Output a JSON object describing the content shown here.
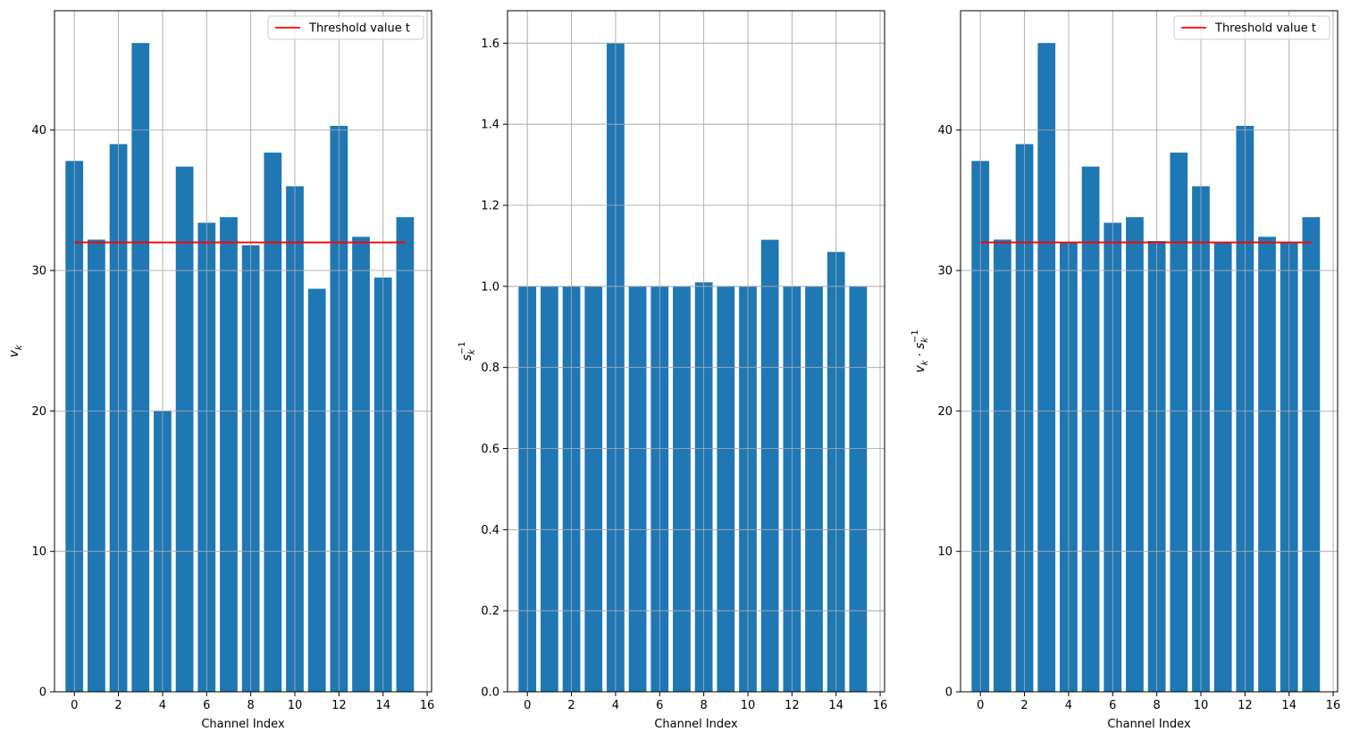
{
  "chart_data": [
    {
      "type": "bar",
      "xlabel": "Channel Index",
      "ylabel": "v_k",
      "ylabel_parts": {
        "main": "v",
        "sub": "k"
      },
      "categories": [
        0,
        1,
        2,
        3,
        4,
        5,
        6,
        7,
        8,
        9,
        10,
        11,
        12,
        13,
        14,
        15
      ],
      "values": [
        37.8,
        32.2,
        39.0,
        46.2,
        20.0,
        37.4,
        33.4,
        33.8,
        31.8,
        38.4,
        36.0,
        28.7,
        40.3,
        32.4,
        29.5,
        33.8
      ],
      "xticks": [
        0,
        2,
        4,
        6,
        8,
        10,
        12,
        14,
        16
      ],
      "xlim": [
        -0.9,
        16.2
      ],
      "yticks": [
        0,
        10,
        20,
        30,
        40
      ],
      "ylim": [
        0,
        48.5
      ],
      "bar_color": "#1f77b4",
      "threshold": {
        "value": 32.0,
        "x_start": 0,
        "x_end": 15,
        "color": "#ff0000"
      },
      "legend": {
        "label": "Threshold value t",
        "position": "upper right"
      },
      "grid": true
    },
    {
      "type": "bar",
      "xlabel": "Channel Index",
      "ylabel": "s_k^-1",
      "ylabel_parts": {
        "main": "s",
        "sub": "k",
        "sup": "−1"
      },
      "categories": [
        0,
        1,
        2,
        3,
        4,
        5,
        6,
        7,
        8,
        9,
        10,
        11,
        12,
        13,
        14,
        15
      ],
      "values": [
        1.0,
        1.0,
        1.0,
        1.0,
        1.6,
        1.0,
        1.0,
        1.0,
        1.01,
        1.0,
        1.0,
        1.115,
        1.0,
        1.0,
        1.085,
        1.0
      ],
      "xticks": [
        0,
        2,
        4,
        6,
        8,
        10,
        12,
        14,
        16
      ],
      "xlim": [
        -0.9,
        16.2
      ],
      "yticks": [
        "0.0",
        "0.2",
        "0.4",
        "0.6",
        "0.8",
        "1.0",
        "1.2",
        "1.4",
        "1.6"
      ],
      "ylim": [
        0,
        1.68
      ],
      "bar_color": "#1f77b4",
      "grid": true
    },
    {
      "type": "bar",
      "xlabel": "Channel Index",
      "ylabel": "v_k · s_k^-1",
      "ylabel_parts": {
        "main1": "v",
        "sub1": "k",
        "dot": " · ",
        "main2": "s",
        "sub2": "k",
        "sup2": "−1"
      },
      "categories": [
        0,
        1,
        2,
        3,
        4,
        5,
        6,
        7,
        8,
        9,
        10,
        11,
        12,
        13,
        14,
        15
      ],
      "values": [
        37.8,
        32.2,
        39.0,
        46.2,
        32.0,
        37.4,
        33.4,
        33.8,
        32.1,
        38.4,
        36.0,
        32.0,
        40.3,
        32.4,
        32.0,
        33.8
      ],
      "xticks": [
        0,
        2,
        4,
        6,
        8,
        10,
        12,
        14,
        16
      ],
      "xlim": [
        -0.9,
        16.2
      ],
      "yticks": [
        0,
        10,
        20,
        30,
        40
      ],
      "ylim": [
        0,
        48.5
      ],
      "bar_color": "#1f77b4",
      "threshold": {
        "value": 32.0,
        "x_start": 0,
        "x_end": 15,
        "color": "#ff0000"
      },
      "legend": {
        "label": "Threshold value t",
        "position": "upper right"
      },
      "grid": true
    }
  ]
}
